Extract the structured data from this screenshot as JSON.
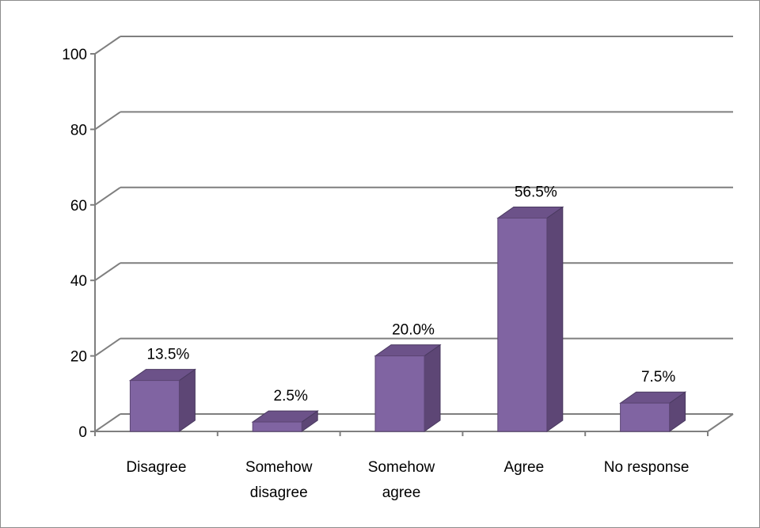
{
  "chart_data": {
    "type": "bar",
    "style": "3d-column",
    "categories": [
      [
        "Disagree"
      ],
      [
        "Somehow",
        "disagree"
      ],
      [
        "Somehow",
        "agree"
      ],
      [
        "Agree"
      ],
      [
        "No response"
      ]
    ],
    "values": [
      13.5,
      2.5,
      20.0,
      56.5,
      7.5
    ],
    "data_labels": [
      "13.5%",
      "2.5%",
      "20.0%",
      "56.5%",
      "7.5%"
    ],
    "y_ticks": [
      0,
      20,
      40,
      60,
      80,
      100
    ],
    "ylim": [
      0,
      100
    ],
    "grid": true,
    "legend": "none",
    "colors": {
      "bar_front": "#8064a2",
      "bar_side": "#5d4675",
      "bar_top": "#6c5289",
      "grid": "#7f7f7f",
      "axis": "#7f7f7f"
    }
  }
}
